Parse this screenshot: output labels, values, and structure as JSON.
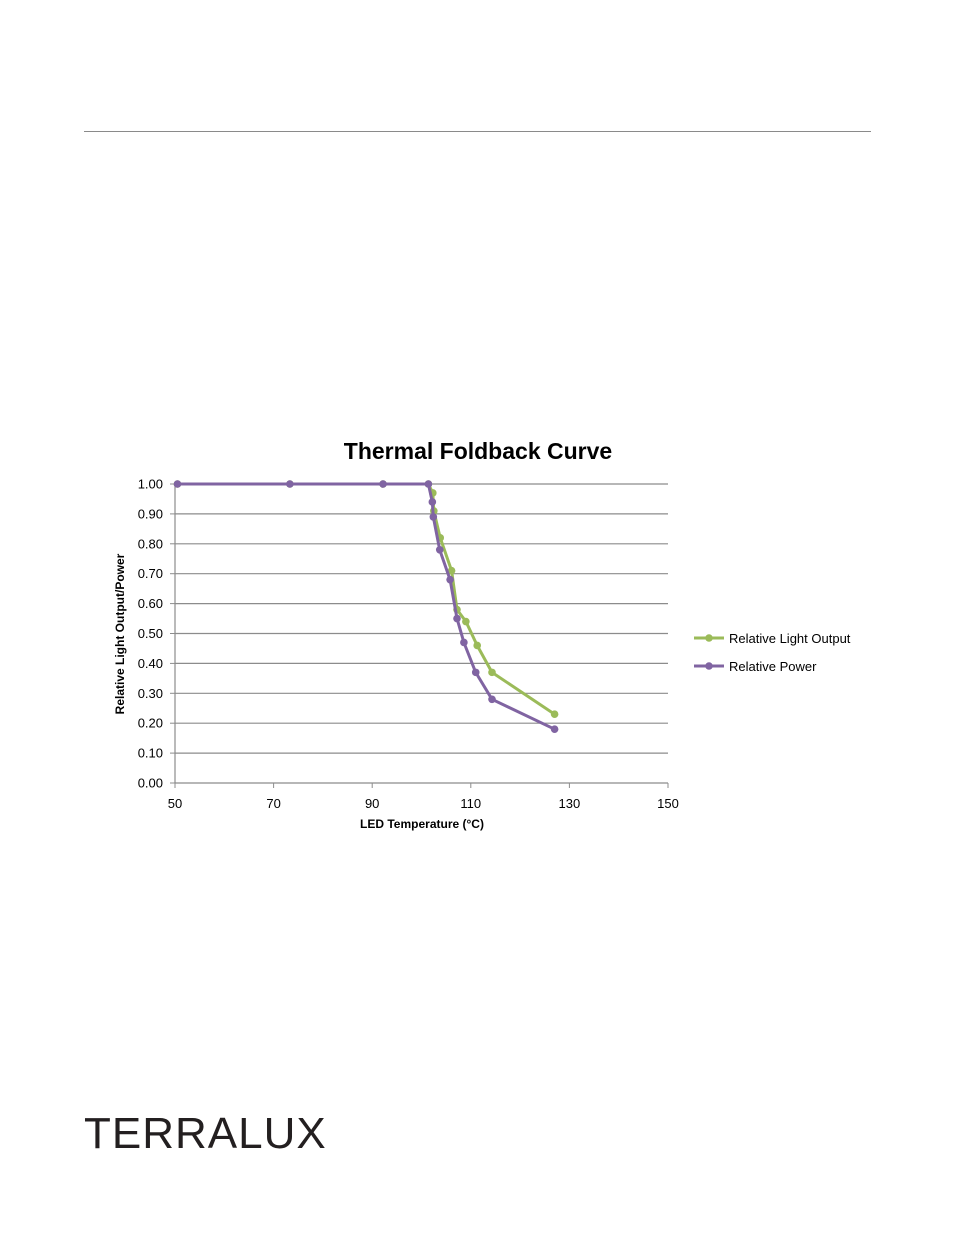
{
  "brand": {
    "logo_text": "TERRALUX"
  },
  "chart_data": {
    "type": "line",
    "title": "Thermal Foldback Curve",
    "xlabel": "LED Temperature (°C)",
    "ylabel": "Relative Light Output/Power",
    "xlim": [
      50,
      150
    ],
    "ylim": [
      0,
      1.0
    ],
    "x_ticks": [
      50,
      70,
      90,
      110,
      130,
      150
    ],
    "x_tick_labels": [
      "50",
      "70",
      "90",
      "110",
      "130",
      "150"
    ],
    "y_ticks": [
      0,
      0.1,
      0.2,
      0.3,
      0.4,
      0.5,
      0.6,
      0.7,
      0.8,
      0.9,
      1.0
    ],
    "y_tick_labels": [
      "0.00",
      "0.10",
      "0.20",
      "0.30",
      "0.40",
      "0.50",
      "0.60",
      "0.70",
      "0.80",
      "0.90",
      "1.00"
    ],
    "grid": "horizontal",
    "legend_position": "right",
    "series": [
      {
        "name": "Relative Light Output",
        "color": "#9bbb59",
        "points": [
          [
            50.5,
            1.0
          ],
          [
            73.3,
            1.0
          ],
          [
            92.2,
            1.0
          ],
          [
            101.4,
            1.0
          ],
          [
            102.3,
            0.97
          ],
          [
            102.5,
            0.91
          ],
          [
            103.8,
            0.82
          ],
          [
            106.1,
            0.71
          ],
          [
            107.2,
            0.58
          ],
          [
            109.0,
            0.54
          ],
          [
            111.3,
            0.46
          ],
          [
            114.3,
            0.37
          ],
          [
            127.0,
            0.23
          ]
        ]
      },
      {
        "name": "Relative Power",
        "color": "#8064a2",
        "points": [
          [
            50.5,
            1.0
          ],
          [
            73.3,
            1.0
          ],
          [
            92.2,
            1.0
          ],
          [
            101.4,
            1.0
          ],
          [
            102.2,
            0.94
          ],
          [
            102.4,
            0.89
          ],
          [
            103.7,
            0.78
          ],
          [
            105.8,
            0.68
          ],
          [
            107.2,
            0.55
          ],
          [
            108.6,
            0.47
          ],
          [
            111.0,
            0.37
          ],
          [
            114.3,
            0.28
          ],
          [
            127.0,
            0.18
          ]
        ]
      }
    ]
  }
}
